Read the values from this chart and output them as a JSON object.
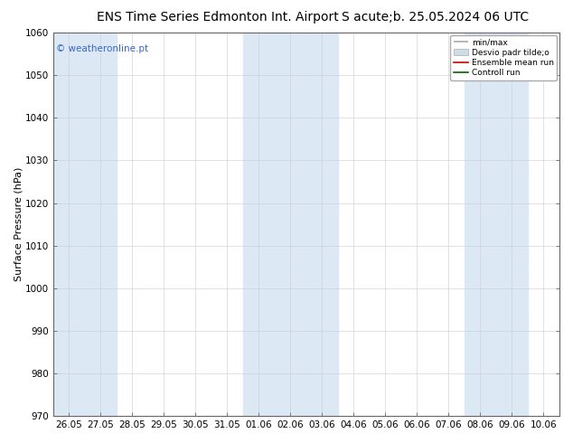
{
  "title_left": "ENS Time Series Edmonton Int. Airport",
  "title_right": "S acute;b. 25.05.2024 06 UTC",
  "ylabel": "Surface Pressure (hPa)",
  "ylim": [
    970,
    1060
  ],
  "yticks": [
    970,
    980,
    990,
    1000,
    1010,
    1020,
    1030,
    1040,
    1050,
    1060
  ],
  "xtick_labels": [
    "26.05",
    "27.05",
    "28.05",
    "29.05",
    "30.05",
    "31.05",
    "01.06",
    "02.06",
    "03.06",
    "04.06",
    "05.06",
    "06.06",
    "07.06",
    "08.06",
    "09.06",
    "10.06"
  ],
  "shade_indices": [
    0,
    1,
    6,
    7,
    8,
    13,
    14
  ],
  "shade_color": "#dce9f5",
  "bg_color": "#ffffff",
  "plot_bg_color": "#ffffff",
  "watermark": "© weatheronline.pt",
  "watermark_color": "#3366cc",
  "legend_labels": [
    "min/max",
    "Desvio padr tilde;o",
    "Ensemble mean run",
    "Controll run"
  ],
  "title_fontsize": 10,
  "axis_label_fontsize": 8,
  "tick_fontsize": 7.5,
  "watermark_fontsize": 7.5
}
